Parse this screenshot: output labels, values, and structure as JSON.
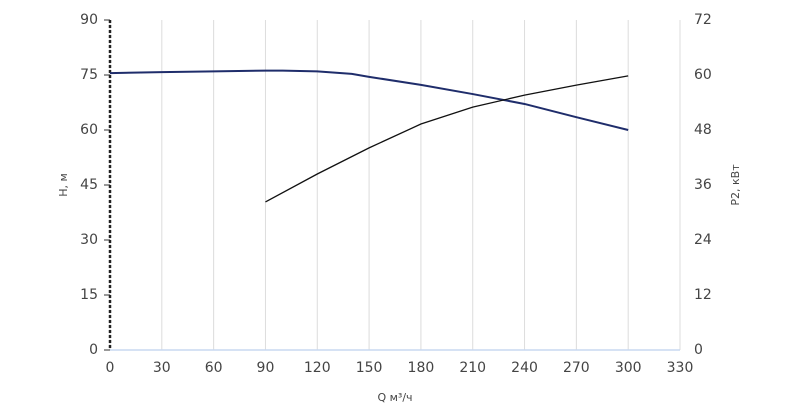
{
  "chart_data": {
    "type": "line",
    "x_label": "Q м³/ч",
    "y_label": "H, м",
    "y2_label": "P2, кВт",
    "grid": true,
    "xlim": [
      0,
      330
    ],
    "xticks": [
      0,
      30,
      60,
      90,
      120,
      150,
      180,
      210,
      240,
      270,
      300,
      330
    ],
    "ylim": [
      0,
      90
    ],
    "yticks": [
      0,
      15,
      30,
      45,
      60,
      75,
      90
    ],
    "y2lim": [
      0,
      72
    ],
    "y2ticks": [
      0,
      12,
      24,
      36,
      48,
      60,
      72
    ],
    "series": [
      {
        "name": "H",
        "color": "#1f2d6b",
        "x": [
          0,
          30,
          60,
          90,
          100,
          120,
          140,
          150,
          180,
          210,
          240,
          270,
          300
        ],
        "values": [
          75.5,
          75.8,
          76,
          76.2,
          76.2,
          76,
          75.3,
          74.5,
          72.3,
          69.8,
          67.1,
          63.5,
          60
        ]
      },
      {
        "name": "P2",
        "color": "#111111",
        "axis": "y2",
        "x": [
          90,
          120,
          150,
          180,
          210,
          240,
          270,
          300
        ],
        "values": [
          32.3,
          38.4,
          44.1,
          49.3,
          53,
          55.6,
          57.8,
          59.8
        ]
      }
    ]
  }
}
